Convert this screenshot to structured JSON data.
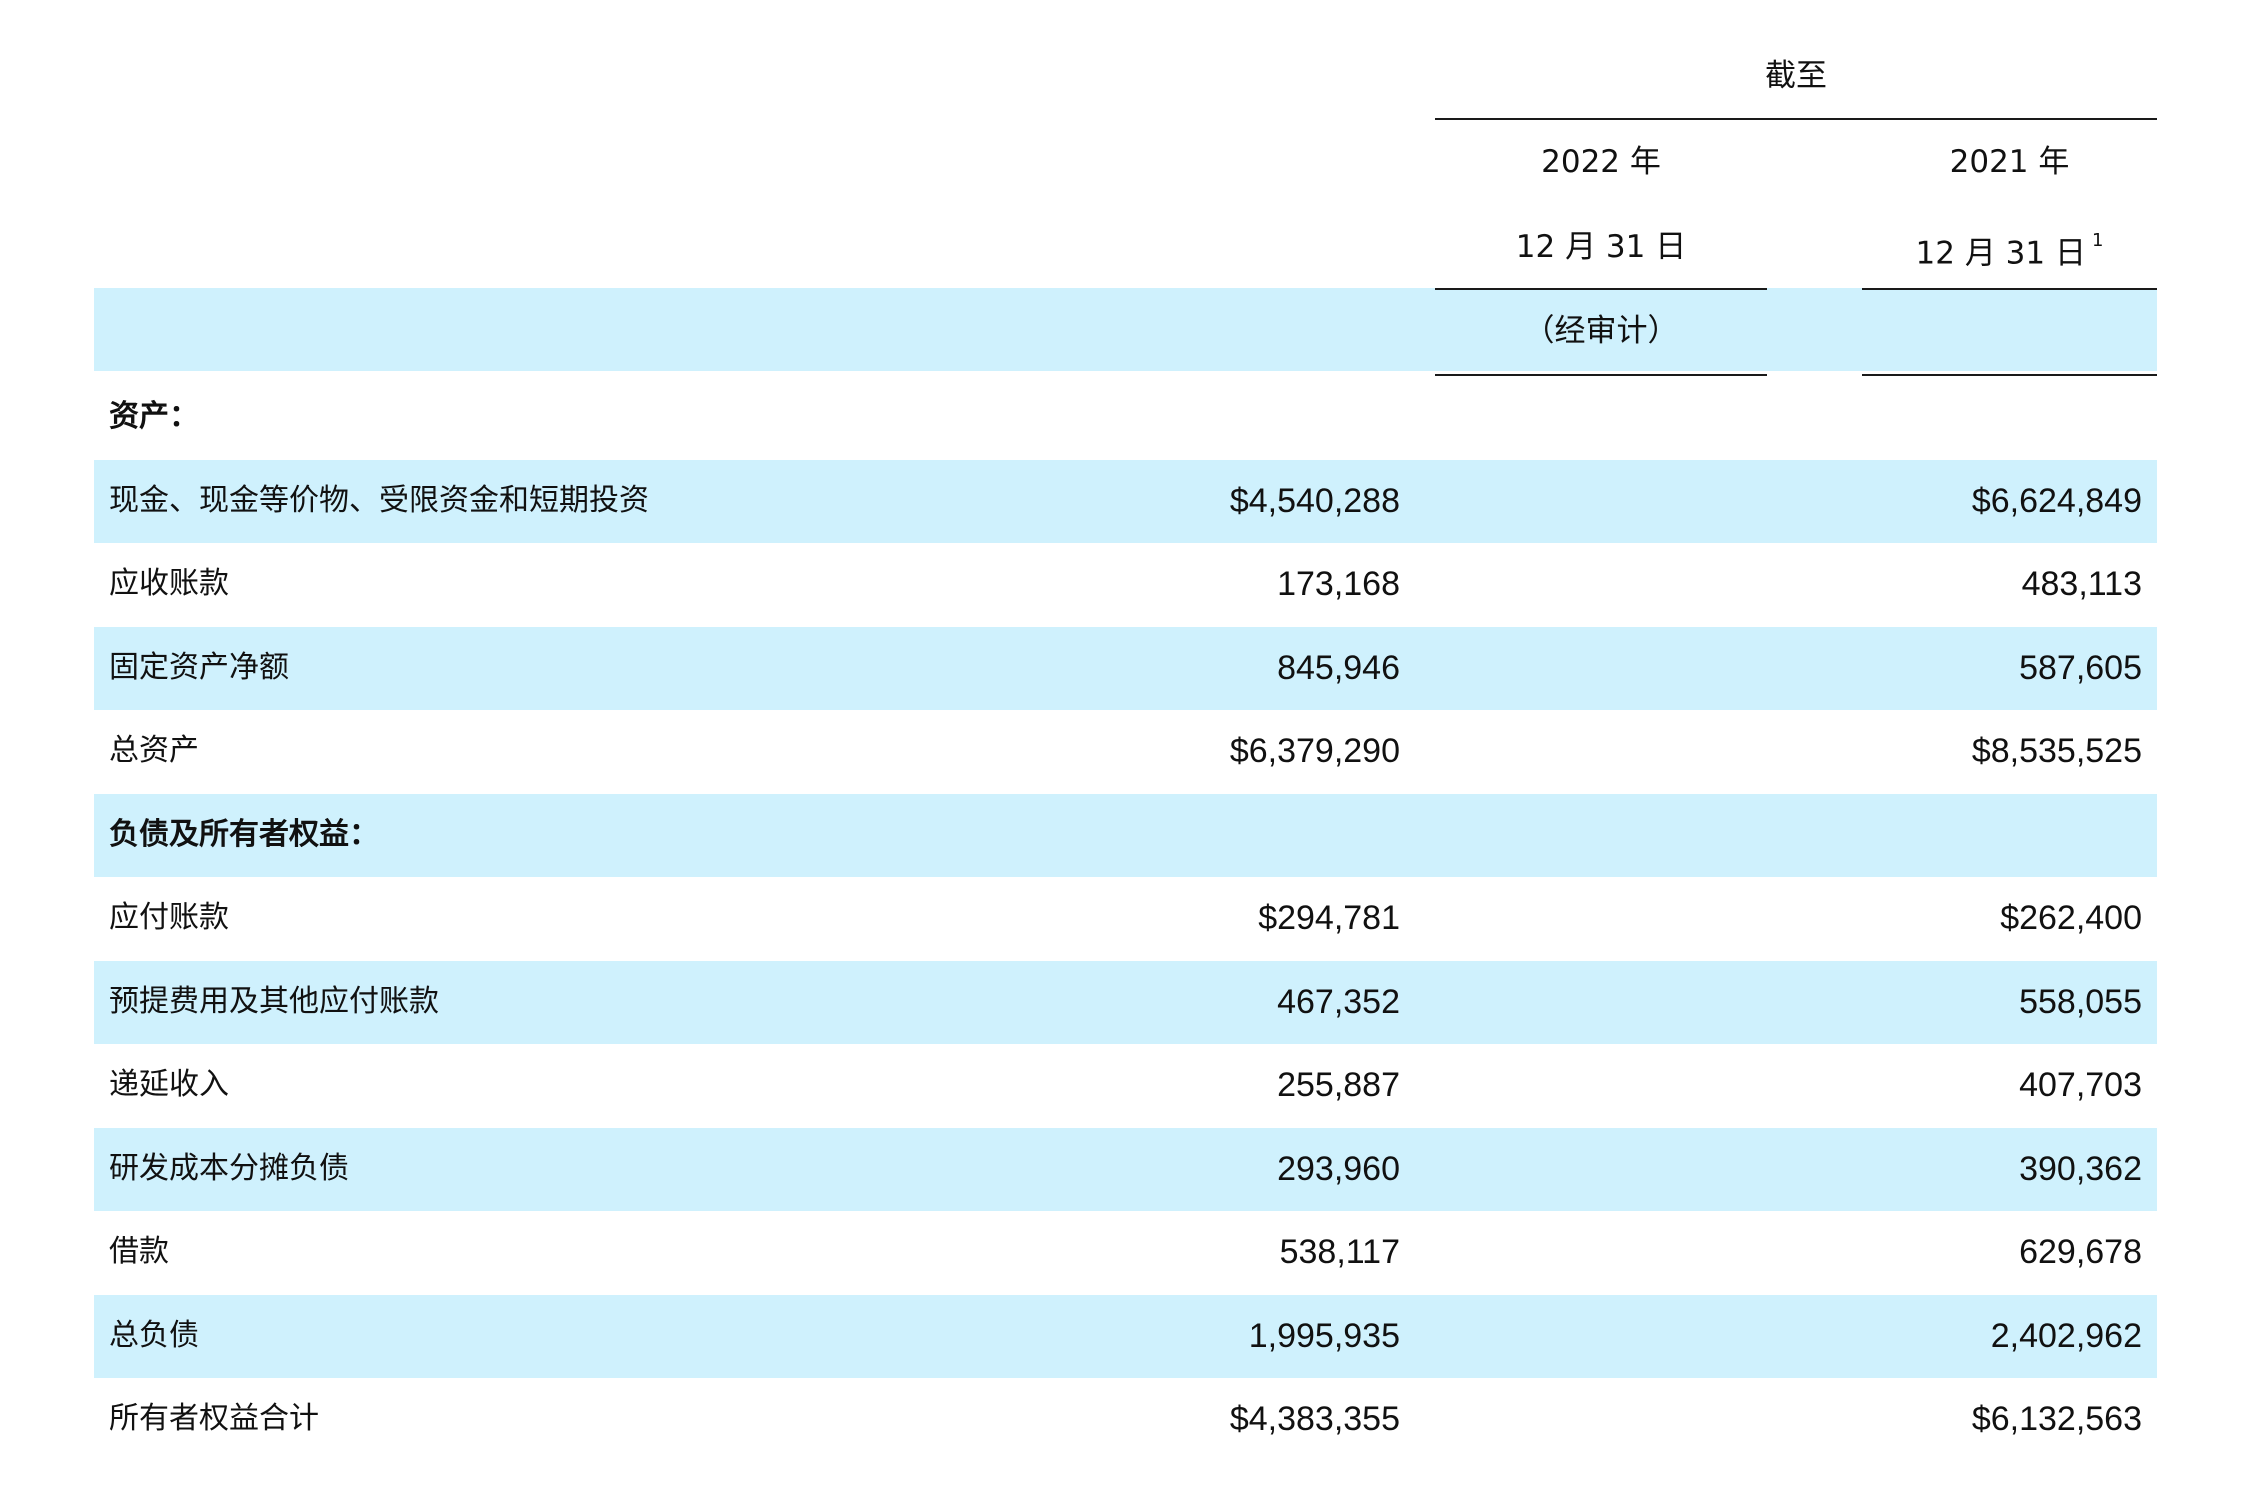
{
  "header": {
    "as_of": "截至",
    "col1": {
      "year": "2022 年",
      "date": "12 月 31 日",
      "note": "（经审计）"
    },
    "col2": {
      "year": "2021 年",
      "date": "12 月 31 日",
      "footnote": "1"
    }
  },
  "rows": [
    {
      "label": "资产：",
      "section": true,
      "v2022": "",
      "v2021": ""
    },
    {
      "label": "现金、现金等价物、受限资金和短期投资",
      "v2022": "$4,540,288",
      "v2021": "$6,624,849"
    },
    {
      "label": "应收账款",
      "v2022": "173,168",
      "v2021": "483,113"
    },
    {
      "label": "固定资产净额",
      "v2022": "845,946",
      "v2021": "587,605"
    },
    {
      "label": "总资产",
      "v2022": "$6,379,290",
      "v2021": "$8,535,525"
    },
    {
      "label": "负债及所有者权益：",
      "section": true,
      "v2022": "",
      "v2021": ""
    },
    {
      "label": "应付账款",
      "v2022": "$294,781",
      "v2021": "$262,400"
    },
    {
      "label": "预提费用及其他应付账款",
      "v2022": "467,352",
      "v2021": "558,055"
    },
    {
      "label": "递延收入",
      "v2022": "255,887",
      "v2021": "407,703"
    },
    {
      "label": "研发成本分摊负债",
      "v2022": "293,960",
      "v2021": "390,362"
    },
    {
      "label": "借款",
      "v2022": "538,117",
      "v2021": "629,678"
    },
    {
      "label": "总负债",
      "v2022": "1,995,935",
      "v2021": "2,402,962"
    },
    {
      "label": "所有者权益合计",
      "v2022": "$4,383,355",
      "v2021": "$6,132,563"
    }
  ],
  "colors": {
    "band": "#cff1fd",
    "rule": "#1a1a1a",
    "text": "#111111"
  }
}
